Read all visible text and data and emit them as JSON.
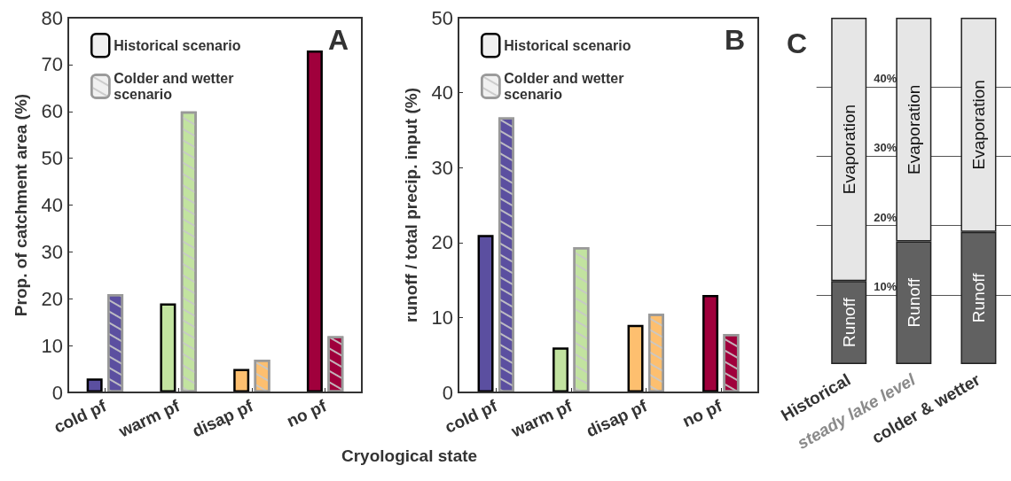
{
  "chart_data": [
    {
      "type": "bar",
      "title": "A",
      "xlabel": "Cryological state",
      "ylabel": "Prop. of catchment area (%)",
      "categories": [
        "cold pf",
        "warm pf",
        "disap pf",
        "no pf"
      ],
      "ylim": [
        0,
        80
      ],
      "yticks": [
        0,
        10,
        20,
        30,
        40,
        50,
        60,
        70,
        80
      ],
      "legend": "top left",
      "grid": false,
      "series": [
        {
          "name": "Historical scenario",
          "values": [
            3,
            19,
            5,
            73
          ],
          "colors": [
            "#5b4fa0",
            "#c2e3a0",
            "#fdbf6f",
            "#a0003c"
          ]
        },
        {
          "name": "Colder and wetter scenario",
          "values": [
            21,
            60,
            7,
            12
          ],
          "colors": [
            "#5b4fa0",
            "#c2e3a0",
            "#fdbf6f",
            "#a0003c"
          ]
        }
      ]
    },
    {
      "type": "bar",
      "title": "B",
      "ylabel": "runoff / total precip. input (%)",
      "categories": [
        "cold pf",
        "warm pf",
        "disap pf",
        "no pf"
      ],
      "ylim": [
        0,
        50
      ],
      "yticks": [
        0,
        10,
        20,
        30,
        40,
        50
      ],
      "legend": "top left",
      "grid": false,
      "series": [
        {
          "name": "Historical scenario",
          "values": [
            21,
            6,
            9,
            13
          ],
          "colors": [
            "#5b4fa0",
            "#c2e3a0",
            "#fdbf6f",
            "#a0003c"
          ]
        },
        {
          "name": "Colder and wetter scenario",
          "values": [
            36.7,
            19.4,
            10.5,
            7.8
          ],
          "colors": [
            "#5b4fa0",
            "#c2e3a0",
            "#fdbf6f",
            "#a0003c"
          ]
        }
      ]
    },
    {
      "type": "bar",
      "title": "C",
      "stacked": true,
      "categories": [
        "Historical",
        "steady lake level",
        "colder & wetter"
      ],
      "ylim": [
        0,
        50
      ],
      "yticks": [
        {
          "value": 10,
          "label": "10%"
        },
        {
          "value": 20,
          "label": "20%"
        },
        {
          "value": 30,
          "label": "30%"
        },
        {
          "value": 40,
          "label": "40%"
        }
      ],
      "grid": "y",
      "legend": false,
      "series": [
        {
          "name": "Runoff",
          "color": "#616161",
          "values": [
            12,
            17.7,
            19.1
          ]
        },
        {
          "name": "Evaporation",
          "color": "#e6e6e6",
          "values": [
            38,
            32.3,
            30.9
          ]
        }
      ]
    }
  ]
}
